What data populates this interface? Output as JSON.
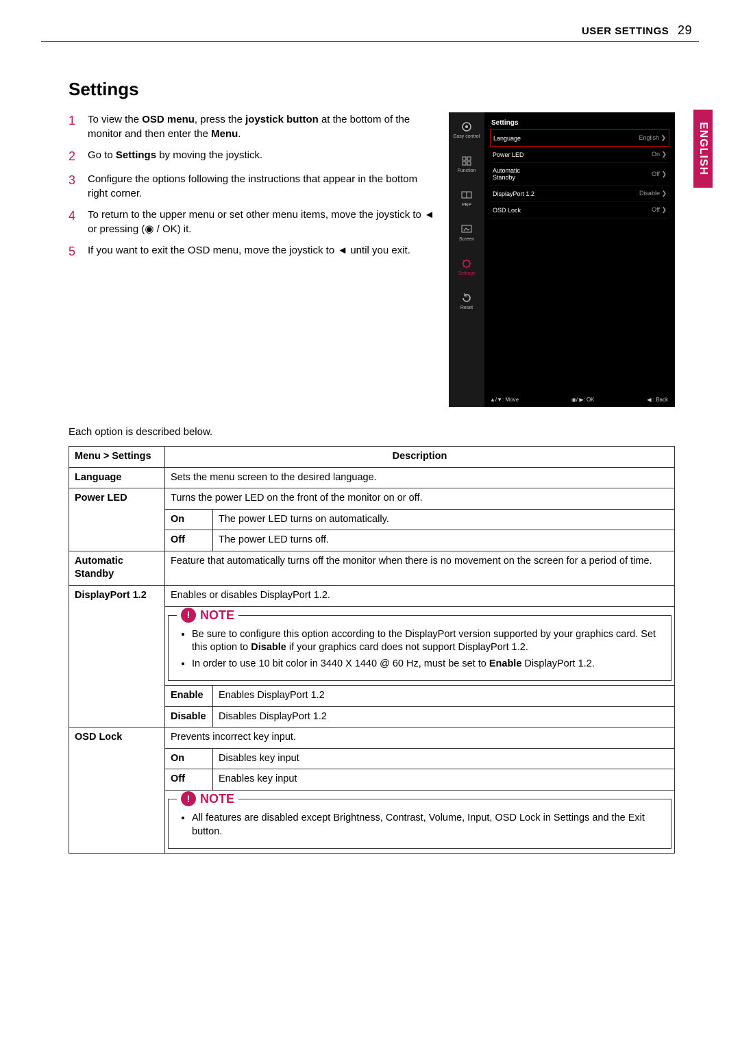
{
  "header": {
    "section": "USER SETTINGS",
    "page": "29"
  },
  "lang_tab": "ENGLISH",
  "title": "Settings",
  "steps": [
    {
      "n": "1",
      "html": "To view the <b>OSD menu</b>, press the <b>joystick button</b> at the bottom of the monitor and then enter the <b>Menu</b>."
    },
    {
      "n": "2",
      "html": "Go to <b>Settings</b> by moving the joystick."
    },
    {
      "n": "3",
      "html": "Configure the options following the instructions that appear in the bottom right corner."
    },
    {
      "n": "4",
      "html": "To return to the upper menu or set other menu items, move the joystick to ◄ or pressing (◉ / OK) it."
    },
    {
      "n": "5",
      "html": "If you want to exit the OSD menu, move the joystick to ◄ until you exit."
    }
  ],
  "osd": {
    "title": "Settings",
    "sidebar": [
      {
        "label": "Easy control"
      },
      {
        "label": "Function"
      },
      {
        "label": "PBP"
      },
      {
        "label": "Screen"
      },
      {
        "label": "Settings",
        "accent": true
      },
      {
        "label": "Reset"
      }
    ],
    "rows": [
      {
        "label": "Language",
        "value": "English  ❯",
        "highlight": true
      },
      {
        "label": "Power LED",
        "value": "On  ❯"
      },
      {
        "label": "Automatic\nStandby",
        "value": "Off  ❯"
      },
      {
        "label": "DisplayPort 1.2",
        "value": "Disable  ❯"
      },
      {
        "label": "OSD Lock",
        "value": "Off  ❯"
      }
    ],
    "footer": {
      "move": "▲/▼: Move",
      "ok": "◉/ ▶: OK",
      "back": "◀ : Back"
    }
  },
  "desc_intro": "Each option is described below.",
  "table": {
    "head": {
      "c1": "Menu > Settings",
      "c2": "Description"
    },
    "language": {
      "label": "Language",
      "desc": "Sets the menu screen to the desired language."
    },
    "power_led": {
      "label": "Power LED",
      "desc": "Turns the power LED on the front of the monitor on or off.",
      "on": {
        "k": "On",
        "v": "The power LED turns on automatically."
      },
      "off": {
        "k": "Off",
        "v": "The power LED turns off."
      }
    },
    "auto_standby": {
      "label": "Automatic Standby",
      "desc": "Feature that automatically turns off the monitor when there is no movement on the screen for a period of time."
    },
    "dp12": {
      "label": "DisplayPort 1.2",
      "desc": "Enables or disables DisplayPort 1.2.",
      "note": [
        "Be sure to configure this option according to the DisplayPort version supported by your graphics card. Set this option to <b>Disable</b> if your graphics card does not support DisplayPort 1.2.",
        "In order to use 10 bit color in 3440 X 1440 @ 60 Hz, must be set to <b>Enable</b> DisplayPort 1.2."
      ],
      "enable": {
        "k": "Enable",
        "v": "Enables DisplayPort 1.2"
      },
      "disable": {
        "k": "Disable",
        "v": "Disables DisplayPort 1.2"
      }
    },
    "osd_lock": {
      "label": "OSD Lock",
      "desc": "Prevents incorrect key input.",
      "on": {
        "k": "On",
        "v": "Disables key input"
      },
      "off": {
        "k": "Off",
        "v": "Enables key input"
      },
      "note": [
        "All features are disabled except Brightness, Contrast, Volume, Input, OSD Lock in Settings and the Exit button."
      ]
    }
  },
  "note_label": "NOTE",
  "colors": {
    "accent": "#c2185b",
    "border": "#333333",
    "bg": "#ffffff"
  }
}
